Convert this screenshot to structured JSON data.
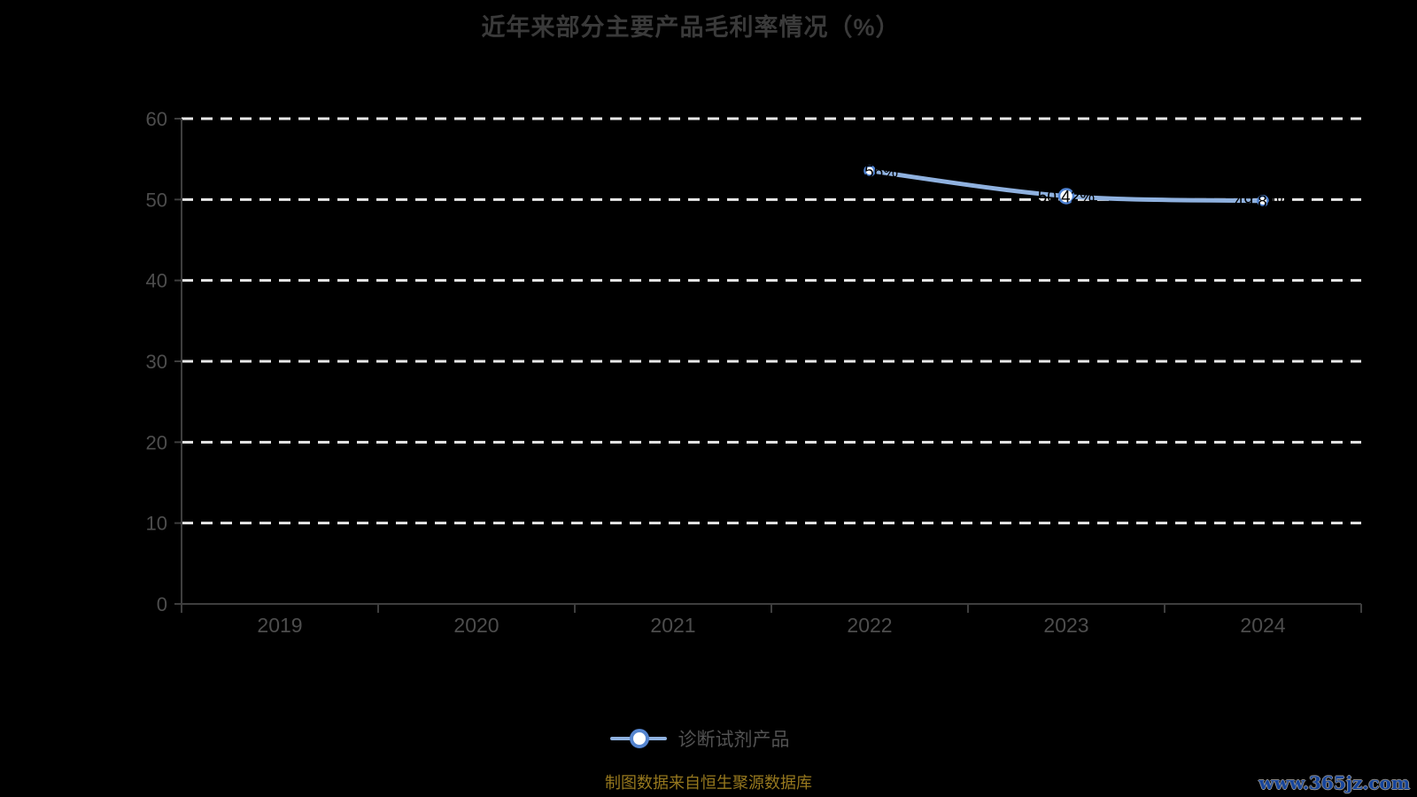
{
  "title": "近年来部分主要产品毛利率情况（%）",
  "legend": {
    "label": "诊断试剂产品"
  },
  "footer": {
    "source_note": "制图数据来自恒生聚源数据库"
  },
  "watermark": "www.365jz.com",
  "colors": {
    "background": "#000000",
    "title_text": "#3a3a3a",
    "axis_text": "#4d4d4d",
    "axis_line": "#3e3e3e",
    "gridline": "#e8e8e8",
    "series_line": "#8fb1df",
    "marker_fill": "#ffffff",
    "marker_stroke": "#4e82d2",
    "data_label": "#000000",
    "legend_text": "#525252",
    "footer_text": "#96781e",
    "watermark_text": "#16459c"
  },
  "chart_data": {
    "type": "line",
    "title": "近年来部分主要产品毛利率情况（%）",
    "categories": [
      "2019",
      "2020",
      "2021",
      "2022",
      "2023",
      "2024"
    ],
    "series": [
      {
        "name": "诊断试剂产品",
        "values": [
          null,
          null,
          null,
          53.56,
          50.42,
          49.84
        ],
        "labels": [
          "",
          "",
          "",
          "53.56%",
          "50.42%",
          "49.84%"
        ]
      }
    ],
    "xlabel": "",
    "ylabel": "",
    "ylim": [
      0,
      60
    ],
    "ytick_step": 10,
    "yticks": [
      "0",
      "10",
      "20",
      "30",
      "40",
      "50",
      "60"
    ],
    "grid": "horizontal-dashed",
    "legend_position": "bottom",
    "smooth": true
  }
}
